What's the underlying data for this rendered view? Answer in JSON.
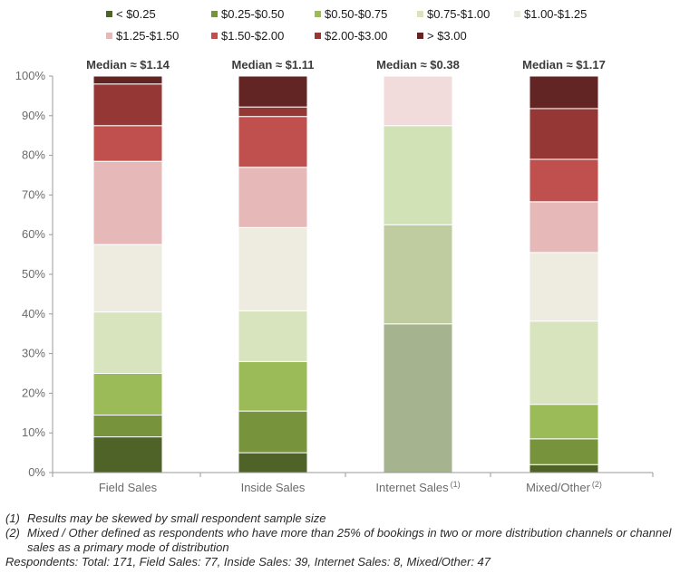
{
  "chart_data": {
    "type": "bar",
    "stacked": true,
    "normalized": true,
    "categories": [
      "Field Sales",
      "Inside Sales",
      "Internet Sales",
      "Mixed/Other"
    ],
    "category_superscripts": [
      "",
      "",
      "(1)",
      "(2)"
    ],
    "medians": [
      "Median ≈ $1.14",
      "Median ≈ $1.11",
      "Median ≈ $0.38",
      "Median ≈ $1.17"
    ],
    "series": [
      {
        "name": "< $0.25",
        "color": "#4f6228",
        "values": [
          9,
          5,
          37.5,
          2
        ]
      },
      {
        "name": "$0.25-$0.50",
        "color": "#77933c",
        "values": [
          5.5,
          10.5,
          25,
          6.5
        ]
      },
      {
        "name": "$0.50-$0.75",
        "color": "#9bbb59",
        "values": [
          10.5,
          12.5,
          25,
          8.7
        ]
      },
      {
        "name": "$0.75-$1.00",
        "color": "#d7e4bd",
        "values": [
          15.5,
          12.8,
          0,
          21
        ]
      },
      {
        "name": "$1.00-$1.25",
        "color": "#eeece1",
        "values": [
          17,
          21,
          0,
          17.3
        ]
      },
      {
        "name": "$1.25-$1.50",
        "color": "#e6b9b8",
        "values": [
          21,
          15.2,
          12.5,
          12.8
        ]
      },
      {
        "name": "$1.50-$2.00",
        "color": "#c0504d",
        "values": [
          9,
          12.8,
          0,
          10.7
        ]
      },
      {
        "name": "$2.00-$3.00",
        "color": "#953735",
        "values": [
          10.5,
          2.4,
          0,
          12.8
        ]
      },
      {
        "name": "> $3.00",
        "color": "#632523",
        "values": [
          2,
          7.8,
          0,
          8.2
        ]
      }
    ],
    "internet_sales_colors": {
      "< $0.25": "#a6b38f",
      "$0.25-$0.50": "#bfcca0",
      "$0.50-$0.75": "#d2e2b7",
      "$1.25-$1.50": "#f2dcdb"
    },
    "yticks": [
      "0%",
      "10%",
      "20%",
      "30%",
      "40%",
      "50%",
      "60%",
      "70%",
      "80%",
      "90%",
      "100%"
    ],
    "ylim": [
      0,
      100
    ],
    "legend_position": "top",
    "grid": false
  },
  "footnotes": [
    {
      "num": "(1)",
      "text": "Results may be skewed by small respondent sample size"
    },
    {
      "num": "(2)",
      "text": "Mixed / Other defined as respondents who have more than 25% of bookings in two or more distribution channels or channel sales as a primary mode of distribution"
    }
  ],
  "respondents": "Respondents: Total: 171, Field Sales: 77, Inside Sales: 39, Internet Sales: 8, Mixed/Other: 47"
}
